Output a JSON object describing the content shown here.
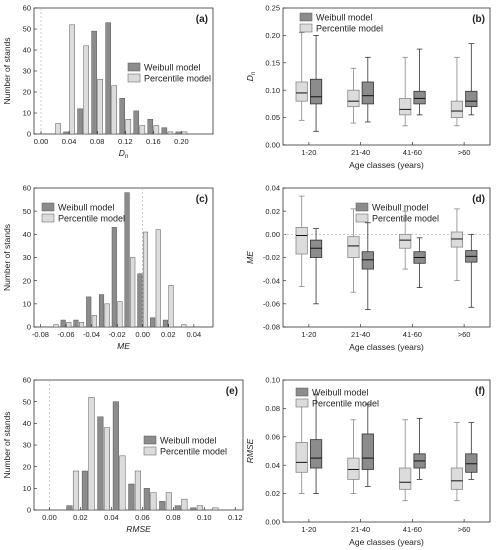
{
  "colors": {
    "weibull": "#8c8c8c",
    "percentile": "#dcdcdc",
    "edge": "#555555",
    "frame": "#333333",
    "zero": "#aaaaaa"
  },
  "chart_data": [
    {
      "panel": "(a)",
      "type": "bar",
      "xlabel": "Dn",
      "xlabel_main": "D",
      "xlabel_sub": "n",
      "ylabel": "Number of stands",
      "xlim": [
        -0.01,
        0.245
      ],
      "ylim": [
        0,
        60
      ],
      "xticks": [
        0.0,
        0.04,
        0.08,
        0.12,
        0.16,
        0.2
      ],
      "xtick_labels": [
        "0.00",
        "0.04",
        "0.08",
        "0.12",
        "0.16",
        "0.20"
      ],
      "yticks": [
        0,
        10,
        20,
        30,
        40,
        50,
        60
      ],
      "ytick_labels": [
        "0",
        "10",
        "20",
        "30",
        "40",
        "50",
        "60"
      ],
      "bin_centers": [
        0.02,
        0.04,
        0.06,
        0.08,
        0.1,
        0.12,
        0.14,
        0.16,
        0.18,
        0.2
      ],
      "bin_width": 0.02,
      "legend": {
        "position": "right",
        "items": [
          "Weibull model",
          "Percentile model"
        ]
      },
      "series": [
        {
          "name": "Weibull model",
          "values": [
            0,
            1,
            12,
            49,
            53,
            17,
            11,
            7,
            3,
            1
          ]
        },
        {
          "name": "Percentile model",
          "values": [
            5,
            52,
            42,
            26,
            23,
            7,
            4,
            4,
            1,
            1
          ]
        }
      ]
    },
    {
      "panel": "(b)",
      "type": "boxplot",
      "xlabel": "Age classes (years)",
      "ylabel": "Dn",
      "ylabel_main": "D",
      "ylabel_sub": "n",
      "ylim": [
        0,
        0.25
      ],
      "yticks": [
        0,
        0.05,
        0.1,
        0.15,
        0.2,
        0.25
      ],
      "ytick_labels": [
        "0.00",
        "0.05",
        "0.10",
        "0.15",
        "0.20",
        "0.25"
      ],
      "categories": [
        "1-20",
        "21-40",
        "41-60",
        ">60"
      ],
      "legend": {
        "position": "top-left",
        "items": [
          "Weibull model",
          "Percentile model"
        ]
      },
      "series": [
        {
          "name": "Percentile model",
          "boxes": [
            {
              "min": 0.045,
              "q1": 0.08,
              "median": 0.095,
              "q3": 0.115,
              "max": 0.205
            },
            {
              "min": 0.04,
              "q1": 0.07,
              "median": 0.08,
              "q3": 0.1,
              "max": 0.14
            },
            {
              "min": 0.035,
              "q1": 0.055,
              "median": 0.065,
              "q3": 0.085,
              "max": 0.16
            },
            {
              "min": 0.035,
              "q1": 0.05,
              "median": 0.062,
              "q3": 0.08,
              "max": 0.16
            }
          ]
        },
        {
          "name": "Weibull model",
          "boxes": [
            {
              "min": 0.025,
              "q1": 0.075,
              "median": 0.088,
              "q3": 0.12,
              "max": 0.2
            },
            {
              "min": 0.042,
              "q1": 0.075,
              "median": 0.09,
              "q3": 0.115,
              "max": 0.16
            },
            {
              "min": 0.055,
              "q1": 0.075,
              "median": 0.085,
              "q3": 0.098,
              "max": 0.175
            },
            {
              "min": 0.055,
              "q1": 0.07,
              "median": 0.08,
              "q3": 0.098,
              "max": 0.185
            }
          ]
        }
      ]
    },
    {
      "panel": "(c)",
      "type": "bar",
      "xlabel": "ME",
      "ylabel": "Number of stands",
      "xlim": [
        -0.085,
        0.055
      ],
      "ylim": [
        0,
        60
      ],
      "xticks": [
        -0.08,
        -0.06,
        -0.04,
        -0.02,
        0.0,
        0.02,
        0.04
      ],
      "xtick_labels": [
        "-0.08",
        "-0.06",
        "-0.04",
        "-0.02",
        "0.00",
        "0.02",
        "0.04"
      ],
      "yticks": [
        0,
        10,
        20,
        30,
        40,
        50,
        60
      ],
      "ytick_labels": [
        "0",
        "10",
        "20",
        "30",
        "40",
        "50",
        "60"
      ],
      "bin_centers": [
        -0.07,
        -0.06,
        -0.05,
        -0.04,
        -0.03,
        -0.02,
        -0.01,
        0.0,
        0.01,
        0.02,
        0.03
      ],
      "bin_width": 0.01,
      "legend": {
        "position": "top-left",
        "items": [
          "Weibull model",
          "Percentile model"
        ]
      },
      "series": [
        {
          "name": "Weibull model",
          "values": [
            0,
            3,
            3,
            13,
            14,
            43,
            58,
            23,
            4,
            3,
            0
          ]
        },
        {
          "name": "Percentile model",
          "values": [
            1,
            2,
            2,
            5,
            10,
            11,
            30,
            41,
            42,
            18,
            1
          ]
        }
      ]
    },
    {
      "panel": "(d)",
      "type": "boxplot",
      "xlabel": "Age classes (years)",
      "ylabel": "ME",
      "ylim": [
        -0.08,
        0.04
      ],
      "yticks": [
        -0.08,
        -0.06,
        -0.04,
        -0.02,
        0.0,
        0.02,
        0.04
      ],
      "ytick_labels": [
        "-0.08",
        "-0.06",
        "-0.04",
        "-0.02",
        "0.00",
        "0.02",
        "0.04"
      ],
      "categories": [
        "1-20",
        "21-40",
        "41-60",
        ">60"
      ],
      "legend": {
        "position": "top-right",
        "items": [
          "Weibull model",
          "Percentile model"
        ]
      },
      "series": [
        {
          "name": "Percentile model",
          "boxes": [
            {
              "min": -0.045,
              "q1": -0.017,
              "median": -0.001,
              "q3": 0.006,
              "max": 0.033
            },
            {
              "min": -0.05,
              "q1": -0.02,
              "median": -0.01,
              "q3": -0.002,
              "max": 0.022
            },
            {
              "min": -0.03,
              "q1": -0.012,
              "median": -0.005,
              "q3": 0.0,
              "max": 0.02
            },
            {
              "min": -0.04,
              "q1": -0.011,
              "median": -0.004,
              "q3": 0.002,
              "max": 0.022
            }
          ]
        },
        {
          "name": "Weibull model",
          "boxes": [
            {
              "min": -0.06,
              "q1": -0.02,
              "median": -0.012,
              "q3": -0.005,
              "max": 0.005
            },
            {
              "min": -0.065,
              "q1": -0.03,
              "median": -0.022,
              "q3": -0.015,
              "max": 0.01
            },
            {
              "min": -0.046,
              "q1": -0.025,
              "median": -0.02,
              "q3": -0.015,
              "max": -0.003
            },
            {
              "min": -0.063,
              "q1": -0.024,
              "median": -0.019,
              "q3": -0.014,
              "max": 0.0
            }
          ]
        }
      ]
    },
    {
      "panel": "(e)",
      "type": "bar",
      "xlabel": "RMSE",
      "ylabel": "Number of stands",
      "xlim": [
        -0.01,
        0.125
      ],
      "ylim": [
        0,
        60
      ],
      "xticks": [
        0.0,
        0.02,
        0.04,
        0.06,
        0.08,
        0.1,
        0.12
      ],
      "xtick_labels": [
        "0.00",
        "0.02",
        "0.04",
        "0.06",
        "0.08",
        "0.10",
        "0.12"
      ],
      "yticks": [
        0,
        10,
        20,
        30,
        40,
        50,
        60
      ],
      "ytick_labels": [
        "0",
        "10",
        "20",
        "30",
        "40",
        "50",
        "60"
      ],
      "bin_centers": [
        0.015,
        0.025,
        0.035,
        0.045,
        0.055,
        0.065,
        0.075,
        0.085,
        0.095,
        0.105
      ],
      "bin_width": 0.01,
      "legend": {
        "position": "right",
        "items": [
          "Weibull model",
          "Percentile model"
        ]
      },
      "series": [
        {
          "name": "Weibull model",
          "values": [
            2,
            18,
            43,
            50,
            12,
            10,
            4,
            2,
            1,
            0
          ]
        },
        {
          "name": "Percentile model",
          "values": [
            18,
            52,
            38,
            25,
            18,
            8,
            8,
            5,
            2,
            1
          ]
        }
      ]
    },
    {
      "panel": "(f)",
      "type": "boxplot",
      "xlabel": "Age classes (years)",
      "ylabel": "RMSE",
      "ylim": [
        0,
        0.1
      ],
      "yticks": [
        0,
        0.02,
        0.04,
        0.06,
        0.08,
        0.1
      ],
      "ytick_labels": [
        "0.00",
        "0.02",
        "0.04",
        "0.06",
        "0.08",
        "0.10"
      ],
      "categories": [
        "1-20",
        "21-40",
        "41-60",
        ">60"
      ],
      "legend": {
        "position": "top-left",
        "items": [
          "Weibull model",
          "Percentile model"
        ]
      },
      "series": [
        {
          "name": "Percentile model",
          "boxes": [
            {
              "min": 0.02,
              "q1": 0.035,
              "median": 0.042,
              "q3": 0.056,
              "max": 0.082
            },
            {
              "min": 0.02,
              "q1": 0.03,
              "median": 0.037,
              "q3": 0.045,
              "max": 0.072
            },
            {
              "min": 0.015,
              "q1": 0.023,
              "median": 0.028,
              "q3": 0.038,
              "max": 0.072
            },
            {
              "min": 0.015,
              "q1": 0.023,
              "median": 0.029,
              "q3": 0.038,
              "max": 0.07
            }
          ]
        },
        {
          "name": "Weibull model",
          "boxes": [
            {
              "min": 0.02,
              "q1": 0.038,
              "median": 0.045,
              "q3": 0.058,
              "max": 0.09
            },
            {
              "min": 0.025,
              "q1": 0.037,
              "median": 0.045,
              "q3": 0.062,
              "max": 0.083
            },
            {
              "min": 0.03,
              "q1": 0.038,
              "median": 0.043,
              "q3": 0.048,
              "max": 0.073
            },
            {
              "min": 0.03,
              "q1": 0.035,
              "median": 0.041,
              "q3": 0.048,
              "max": 0.07
            }
          ]
        }
      ]
    }
  ]
}
